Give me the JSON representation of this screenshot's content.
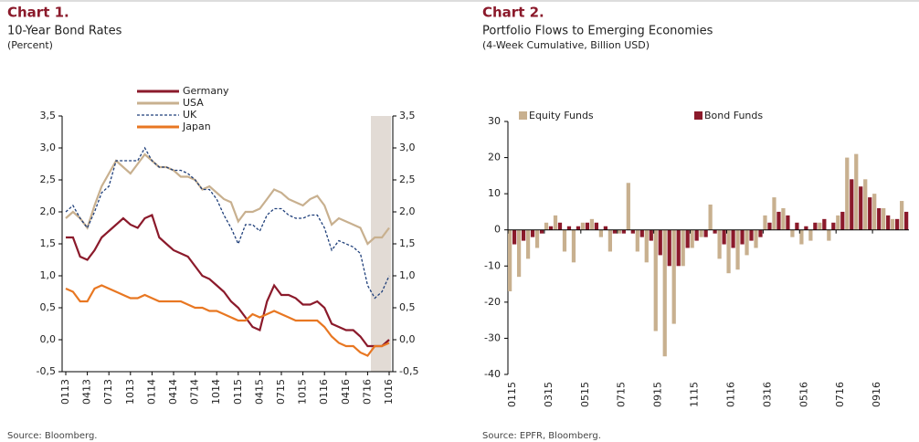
{
  "chart_data": [
    {
      "type": "line",
      "title": "Chart 1.",
      "subtitle": "10-Year Bond Rates",
      "unit": "(Percent)",
      "source": "Source: Bloomberg.",
      "categories": [
        "0113",
        null,
        null,
        "0413",
        null,
        null,
        "0713",
        null,
        null,
        "1013",
        null,
        null,
        "0114",
        null,
        null,
        "0414",
        null,
        null,
        "0714",
        null,
        null,
        "1014",
        null,
        null,
        "0115",
        null,
        null,
        "0415",
        null,
        null,
        "0715",
        null,
        null,
        "1015",
        null,
        null,
        "0116",
        null,
        null,
        "0416",
        null,
        null,
        "0716",
        null,
        null,
        "1016"
      ],
      "series": [
        {
          "name": "Germany",
          "color": "#8b1a2b",
          "dash": false,
          "values": [
            1.6,
            1.6,
            1.3,
            1.25,
            1.4,
            1.6,
            1.7,
            1.8,
            1.9,
            1.8,
            1.75,
            1.9,
            1.95,
            1.6,
            1.5,
            1.4,
            1.35,
            1.3,
            1.15,
            1.0,
            0.95,
            0.85,
            0.75,
            0.6,
            0.5,
            0.35,
            0.2,
            0.15,
            0.6,
            0.85,
            0.7,
            0.7,
            0.65,
            0.55,
            0.55,
            0.6,
            0.5,
            0.25,
            0.2,
            0.15,
            0.15,
            0.05,
            -0.1,
            -0.1,
            -0.1,
            0.0
          ]
        },
        {
          "name": "USA",
          "color": "#c8b08f",
          "dash": false,
          "values": [
            1.9,
            2.0,
            1.9,
            1.75,
            2.1,
            2.4,
            2.6,
            2.8,
            2.7,
            2.6,
            2.75,
            2.9,
            2.8,
            2.7,
            2.7,
            2.65,
            2.55,
            2.55,
            2.5,
            2.35,
            2.4,
            2.3,
            2.2,
            2.15,
            1.85,
            2.0,
            2.0,
            2.05,
            2.2,
            2.35,
            2.3,
            2.2,
            2.15,
            2.1,
            2.2,
            2.25,
            2.1,
            1.8,
            1.9,
            1.85,
            1.8,
            1.75,
            1.5,
            1.6,
            1.6,
            1.75
          ]
        },
        {
          "name": "UK",
          "color": "#1f3f7a",
          "dash": true,
          "values": [
            2.0,
            2.1,
            1.9,
            1.75,
            2.0,
            2.3,
            2.4,
            2.8,
            2.8,
            2.8,
            2.8,
            3.0,
            2.8,
            2.7,
            2.7,
            2.65,
            2.65,
            2.6,
            2.5,
            2.35,
            2.35,
            2.2,
            1.95,
            1.75,
            1.5,
            1.8,
            1.8,
            1.7,
            1.95,
            2.05,
            2.05,
            1.95,
            1.9,
            1.9,
            1.95,
            1.95,
            1.75,
            1.4,
            1.55,
            1.5,
            1.45,
            1.35,
            0.85,
            0.65,
            0.75,
            1.0
          ]
        },
        {
          "name": "Japan",
          "color": "#e87722",
          "dash": false,
          "values": [
            0.8,
            0.75,
            0.6,
            0.6,
            0.8,
            0.85,
            0.8,
            0.75,
            0.7,
            0.65,
            0.65,
            0.7,
            0.65,
            0.6,
            0.6,
            0.6,
            0.6,
            0.55,
            0.5,
            0.5,
            0.45,
            0.45,
            0.4,
            0.35,
            0.3,
            0.3,
            0.4,
            0.35,
            0.4,
            0.45,
            0.4,
            0.35,
            0.3,
            0.3,
            0.3,
            0.3,
            0.2,
            0.05,
            -0.05,
            -0.1,
            -0.1,
            -0.2,
            -0.25,
            -0.1,
            -0.1,
            -0.05
          ]
        }
      ],
      "ylim": [
        -0.5,
        3.5
      ],
      "yticks": [
        {
          "value": -0.5,
          "label": "-0,5"
        },
        {
          "value": 0,
          "label": "0,0"
        },
        {
          "value": 0.5,
          "label": "0,5"
        },
        {
          "value": 1,
          "label": "1,0"
        },
        {
          "value": 1.5,
          "label": "1,5"
        },
        {
          "value": 2,
          "label": "2,0"
        },
        {
          "value": 2.5,
          "label": "2,5"
        },
        {
          "value": 3,
          "label": "3,0"
        },
        {
          "value": 3.5,
          "label": "3,5"
        }
      ],
      "y2lim": [
        -0.5,
        3.5
      ],
      "y2ticks": [
        {
          "value": -0.5,
          "label": "-0,5"
        },
        {
          "value": 0,
          "label": "0,0"
        },
        {
          "value": 0.5,
          "label": "0,5"
        },
        {
          "value": 1,
          "label": "1,0"
        },
        {
          "value": 1.5,
          "label": "1,5"
        },
        {
          "value": 2,
          "label": "2,0"
        },
        {
          "value": 2.5,
          "label": "2,5"
        },
        {
          "value": 3,
          "label": "3,0"
        },
        {
          "value": 3.5,
          "label": "3,5"
        }
      ]
    },
    {
      "type": "bar",
      "title": "Chart 2.",
      "subtitle": "Portfolio Flows to Emerging Economies",
      "unit": "(4-Week Cumulative, Billion USD)",
      "source": "Source: EPFR, Bloomberg.",
      "categories": [
        "0115",
        null,
        null,
        null,
        "0315",
        null,
        null,
        null,
        "0515",
        null,
        null,
        null,
        "0715",
        null,
        null,
        null,
        "0915",
        null,
        null,
        null,
        "1115",
        null,
        null,
        null,
        "0116",
        null,
        null,
        null,
        "0316",
        null,
        null,
        null,
        "0516",
        null,
        null,
        null,
        "0716",
        null,
        null,
        null,
        "0916",
        null,
        null,
        null
      ],
      "series": [
        {
          "name": "Equity Funds",
          "color": "#c8b08f",
          "values": [
            -17,
            -13,
            -8,
            -5,
            2,
            4,
            -6,
            -9,
            2,
            3,
            -2,
            -6,
            -1,
            13,
            -6,
            -9,
            -28,
            -35,
            -26,
            -10,
            -5,
            -2,
            7,
            -8,
            -12,
            -11,
            -7,
            -5,
            4,
            9,
            6,
            -2,
            -4,
            -3,
            2,
            -3,
            4,
            20,
            21,
            14,
            10,
            6,
            3,
            8
          ]
        },
        {
          "name": "Bond Funds",
          "color": "#8b1a2b",
          "values": [
            -4,
            -3,
            -2,
            -1,
            1,
            2,
            1,
            1,
            2,
            2,
            1,
            -1,
            -1,
            -1,
            -2,
            -3,
            -7,
            -10,
            -10,
            -5,
            -3,
            -2,
            -1,
            -4,
            -5,
            -4,
            -3,
            -2,
            2,
            5,
            4,
            2,
            1,
            2,
            3,
            2,
            5,
            14,
            12,
            9,
            6,
            4,
            3,
            5
          ]
        }
      ],
      "ylim": [
        -40,
        30
      ],
      "yticks": [
        -40,
        -30,
        -20,
        -10,
        0,
        10,
        20,
        30
      ]
    }
  ]
}
